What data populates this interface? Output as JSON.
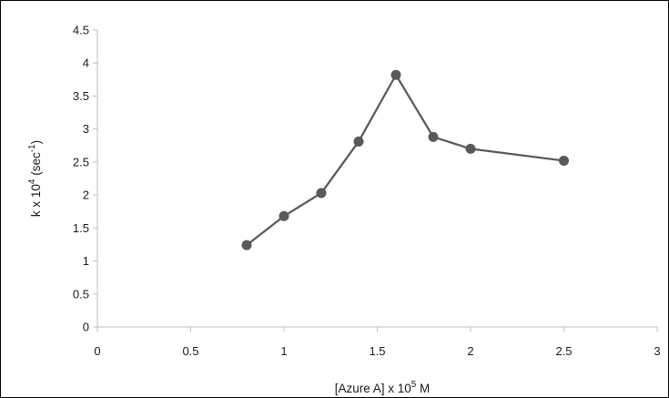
{
  "chart_data": {
    "type": "scatter",
    "title": "",
    "x_axis": {
      "label_parts": [
        "[Azure A] x 10",
        "5",
        " M"
      ],
      "min": 0,
      "max": 3,
      "ticks": [
        0,
        0.5,
        1,
        1.5,
        2,
        2.5,
        3
      ],
      "tick_labels": [
        "0",
        "0.5",
        "1",
        "1.5",
        "2",
        "2.5",
        "3"
      ]
    },
    "y_axis": {
      "label_parts": [
        "k x 10",
        "4",
        " (sec",
        "-1",
        ")"
      ],
      "min": 0,
      "max": 4.5,
      "ticks": [
        0,
        0.5,
        1,
        1.5,
        2,
        2.5,
        3,
        3.5,
        4,
        4.5
      ],
      "tick_labels": [
        "0",
        "0.5",
        "1",
        "1.5",
        "2",
        "2.5",
        "3",
        "3.5",
        "4",
        "4.5"
      ]
    },
    "grid": false,
    "legend": "none",
    "series": [
      {
        "x": [
          0.8,
          1.0,
          1.2,
          1.4,
          1.6,
          1.8,
          2.0,
          2.5
        ],
        "y": [
          1.24,
          1.68,
          2.03,
          2.81,
          3.82,
          2.88,
          2.7,
          2.52
        ],
        "color": "#595959",
        "marker": "circle",
        "line": true
      }
    ]
  }
}
